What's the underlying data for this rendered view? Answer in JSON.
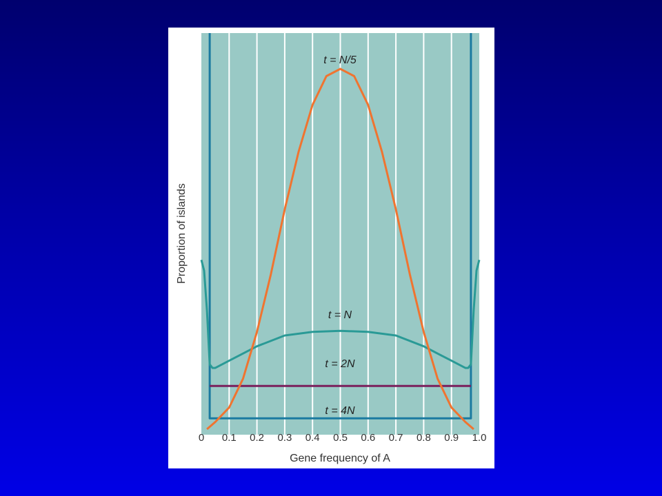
{
  "chart_data": {
    "type": "line",
    "xlabel": "Gene frequency of A",
    "ylabel": "Proportion of islands",
    "xlim": [
      0,
      1
    ],
    "ylim": [
      0,
      1
    ],
    "x_ticks": [
      "0",
      "0.1",
      "0.2",
      "0.3",
      "0.4",
      "0.5",
      "0.6",
      "0.7",
      "0.8",
      "0.9",
      "1.0"
    ],
    "grid": "vertical",
    "series": [
      {
        "name": "t = N/5",
        "color": "#f07430",
        "points": [
          [
            0.02,
            0.0
          ],
          [
            0.05,
            0.02
          ],
          [
            0.1,
            0.06
          ],
          [
            0.15,
            0.14
          ],
          [
            0.2,
            0.27
          ],
          [
            0.25,
            0.43
          ],
          [
            0.3,
            0.61
          ],
          [
            0.35,
            0.77
          ],
          [
            0.4,
            0.9
          ],
          [
            0.45,
            0.98
          ],
          [
            0.5,
            1.0
          ],
          [
            0.55,
            0.98
          ],
          [
            0.6,
            0.9
          ],
          [
            0.65,
            0.77
          ],
          [
            0.7,
            0.61
          ],
          [
            0.75,
            0.43
          ],
          [
            0.8,
            0.27
          ],
          [
            0.85,
            0.14
          ],
          [
            0.9,
            0.06
          ],
          [
            0.95,
            0.02
          ],
          [
            0.98,
            0.0
          ]
        ]
      },
      {
        "name": "t = N",
        "color": "#2a9a96",
        "points": [
          [
            0.0,
            0.47
          ],
          [
            0.01,
            0.44
          ],
          [
            0.02,
            0.33
          ],
          [
            0.03,
            0.18
          ],
          [
            0.04,
            0.17
          ],
          [
            0.05,
            0.17
          ],
          [
            0.1,
            0.19
          ],
          [
            0.2,
            0.23
          ],
          [
            0.3,
            0.26
          ],
          [
            0.4,
            0.27
          ],
          [
            0.5,
            0.273
          ],
          [
            0.6,
            0.27
          ],
          [
            0.7,
            0.26
          ],
          [
            0.8,
            0.23
          ],
          [
            0.9,
            0.19
          ],
          [
            0.95,
            0.17
          ],
          [
            0.96,
            0.17
          ],
          [
            0.97,
            0.18
          ],
          [
            0.98,
            0.33
          ],
          [
            0.99,
            0.44
          ],
          [
            1.0,
            0.47
          ]
        ]
      },
      {
        "name": "t = 2N",
        "color": "#7a1f5c",
        "points": [
          [
            0.03,
            0.12
          ],
          [
            0.97,
            0.12
          ]
        ]
      },
      {
        "name": "t = 4N",
        "color": "#1a7aa0",
        "points": [
          [
            0.03,
            1.1
          ],
          [
            0.03,
            0.03
          ],
          [
            0.97,
            0.03
          ],
          [
            0.97,
            1.1
          ]
        ]
      }
    ]
  }
}
